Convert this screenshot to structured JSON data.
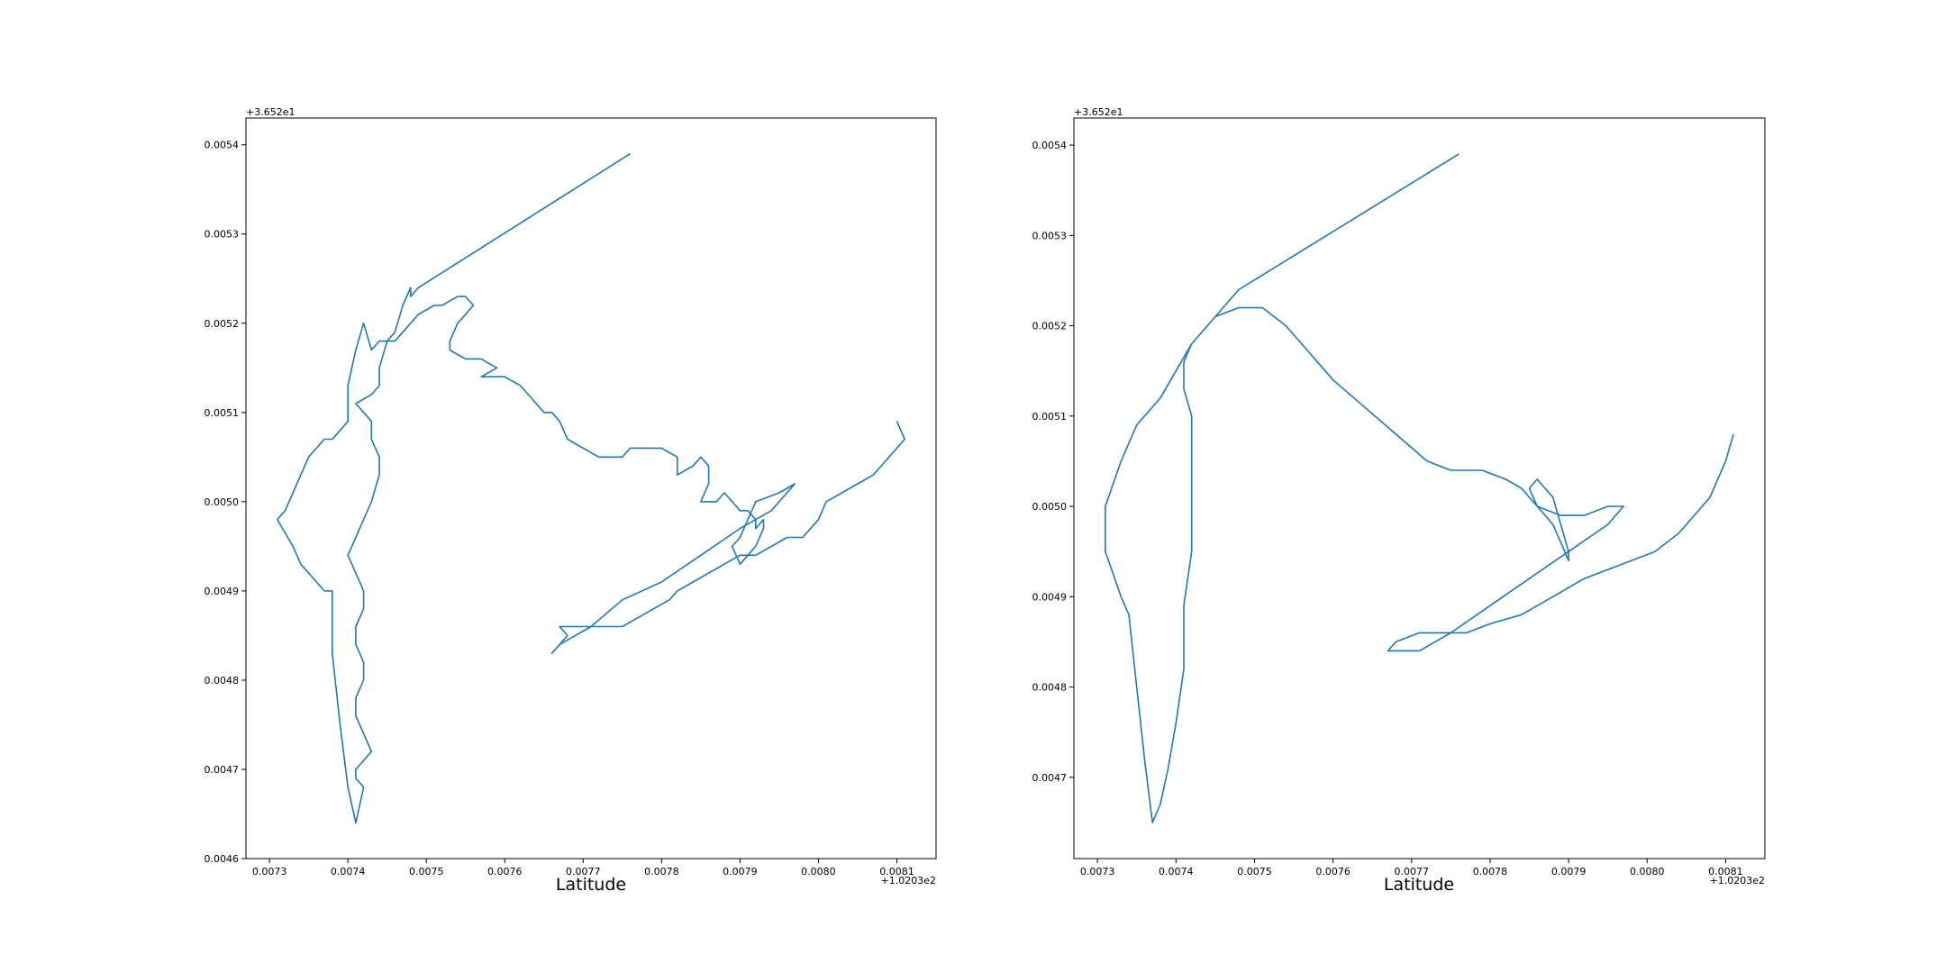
{
  "figure": {
    "background": "#ffffff",
    "line_color": "#1f77b4"
  },
  "chart_data": [
    {
      "type": "line",
      "title": "",
      "xlabel": "Latitude",
      "ylabel": "",
      "x_offset_label": "+1.0203e2",
      "y_offset_label": "+3.652e1",
      "xlim": [
        0.00727,
        0.00815
      ],
      "ylim": [
        0.0046,
        0.00543
      ],
      "x_ticks": [
        0.0073,
        0.0074,
        0.0075,
        0.0076,
        0.0077,
        0.0078,
        0.0079,
        0.008,
        0.0081
      ],
      "x_tick_labels": [
        "0.0073",
        "0.0074",
        "0.0075",
        "0.0076",
        "0.0077",
        "0.0078",
        "0.0079",
        "0.0080",
        "0.0081"
      ],
      "y_ticks": [
        0.0046,
        0.0047,
        0.0048,
        0.0049,
        0.005,
        0.0051,
        0.0052,
        0.0053,
        0.0054
      ],
      "y_tick_labels": [
        "0.0046",
        "0.0047",
        "0.0048",
        "0.0049",
        "0.0050",
        "0.0051",
        "0.0052",
        "0.0053",
        "0.0054"
      ],
      "grid": false,
      "series": [
        {
          "x": [
            0.00776,
            0.00749,
            0.00748,
            0.00748,
            0.00747,
            0.00746,
            0.00745,
            0.00744,
            0.00743,
            0.00742,
            0.00741,
            0.0074,
            0.0074,
            0.00738,
            0.00737,
            0.00736,
            0.00735,
            0.00734,
            0.00733,
            0.00732,
            0.00731,
            0.00733,
            0.00734,
            0.00735,
            0.00736,
            0.00737,
            0.00738,
            0.00738,
            0.00739,
            0.0074,
            0.00741,
            0.00742,
            0.00741,
            0.00741,
            0.00742,
            0.00743,
            0.00742,
            0.00741,
            0.00741,
            0.00742,
            0.00742,
            0.00741,
            0.00741,
            0.00742,
            0.00742,
            0.00741,
            0.0074,
            0.00741,
            0.00742,
            0.00743,
            0.00744,
            0.00744,
            0.00743,
            0.00743,
            0.00742,
            0.00741,
            0.00743,
            0.00744,
            0.00744,
            0.00745,
            0.00746,
            0.00747,
            0.00748,
            0.00749,
            0.00751,
            0.00752,
            0.00754,
            0.00755,
            0.00756,
            0.00754,
            0.00753,
            0.00753,
            0.00755,
            0.00757,
            0.00759,
            0.00757,
            0.0076,
            0.00762,
            0.00764,
            0.00765,
            0.00766,
            0.00767,
            0.00768,
            0.0077,
            0.00772,
            0.00773,
            0.00775,
            0.00776,
            0.00778,
            0.0078,
            0.00782,
            0.00782,
            0.00784,
            0.00785,
            0.00786,
            0.00786,
            0.00785,
            0.00787,
            0.00788,
            0.00789,
            0.0079,
            0.00791,
            0.00792,
            0.00792,
            0.00793,
            0.00793,
            0.00792,
            0.00791,
            0.0079,
            0.00789,
            0.0079,
            0.00791,
            0.00792,
            0.00795,
            0.00797,
            0.00794,
            0.0079,
            0.00785,
            0.0078,
            0.00775,
            0.00771,
            0.00767,
            0.00766,
            0.00768,
            0.00767,
            0.00769,
            0.00772,
            0.00775,
            0.00777,
            0.00779,
            0.00781,
            0.00782,
            0.00784,
            0.00786,
            0.00788,
            0.0079,
            0.00792,
            0.00794,
            0.00796,
            0.00798,
            0.008,
            0.00801,
            0.00803,
            0.00805,
            0.00807,
            0.00809,
            0.0081,
            0.00811,
            0.0081
          ],
          "y": [
            0.00539,
            0.00524,
            0.00523,
            0.00524,
            0.00522,
            0.00519,
            0.00518,
            0.00518,
            0.00517,
            0.0052,
            0.00517,
            0.00513,
            0.00509,
            0.00507,
            0.00507,
            0.00506,
            0.00505,
            0.00503,
            0.00501,
            0.00499,
            0.00498,
            0.00495,
            0.00493,
            0.00492,
            0.00491,
            0.0049,
            0.0049,
            0.00483,
            0.00475,
            0.00468,
            0.00464,
            0.00468,
            0.00469,
            0.0047,
            0.00471,
            0.00472,
            0.00474,
            0.00476,
            0.00478,
            0.0048,
            0.00482,
            0.00484,
            0.00486,
            0.00488,
            0.0049,
            0.00492,
            0.00494,
            0.00496,
            0.00498,
            0.005,
            0.00503,
            0.00505,
            0.00507,
            0.00509,
            0.0051,
            0.00511,
            0.00512,
            0.00513,
            0.00515,
            0.00518,
            0.00518,
            0.00519,
            0.0052,
            0.00521,
            0.00522,
            0.00522,
            0.00523,
            0.00523,
            0.00522,
            0.0052,
            0.00518,
            0.00517,
            0.00516,
            0.00516,
            0.00515,
            0.00514,
            0.00514,
            0.00513,
            0.00511,
            0.0051,
            0.0051,
            0.00509,
            0.00507,
            0.00506,
            0.00505,
            0.00505,
            0.00505,
            0.00506,
            0.00506,
            0.00506,
            0.00505,
            0.00503,
            0.00504,
            0.00505,
            0.00504,
            0.00502,
            0.005,
            0.005,
            0.00501,
            0.005,
            0.00499,
            0.00499,
            0.00498,
            0.00497,
            0.00498,
            0.00497,
            0.00495,
            0.00494,
            0.00493,
            0.00495,
            0.00496,
            0.00498,
            0.005,
            0.00501,
            0.00502,
            0.00499,
            0.00497,
            0.00494,
            0.00491,
            0.00489,
            0.00486,
            0.00484,
            0.00483,
            0.00485,
            0.00486,
            0.00486,
            0.00486,
            0.00486,
            0.00487,
            0.00488,
            0.00489,
            0.0049,
            0.00491,
            0.00492,
            0.00493,
            0.00494,
            0.00494,
            0.00495,
            0.00496,
            0.00496,
            0.00498,
            0.005,
            0.00501,
            0.00502,
            0.00503,
            0.00505,
            0.00506,
            0.00507,
            0.00509
          ]
        }
      ]
    },
    {
      "type": "line",
      "title": "",
      "xlabel": "Latitude",
      "ylabel": "",
      "x_offset_label": "+1.0203e2",
      "y_offset_label": "+3.652e1",
      "xlim": [
        0.00727,
        0.00815
      ],
      "ylim": [
        0.00461,
        0.00543
      ],
      "x_ticks": [
        0.0073,
        0.0074,
        0.0075,
        0.0076,
        0.0077,
        0.0078,
        0.0079,
        0.008,
        0.0081
      ],
      "x_tick_labels": [
        "0.0073",
        "0.0074",
        "0.0075",
        "0.0076",
        "0.0077",
        "0.0078",
        "0.0079",
        "0.0080",
        "0.0081"
      ],
      "y_ticks": [
        0.0047,
        0.0048,
        0.0049,
        0.005,
        0.0051,
        0.0052,
        0.0053,
        0.0054
      ],
      "y_tick_labels": [
        "0.0047",
        "0.0048",
        "0.0049",
        "0.0050",
        "0.0051",
        "0.0052",
        "0.0053",
        "0.0054"
      ],
      "grid": false,
      "series": [
        {
          "x": [
            0.00776,
            0.00748,
            0.00746,
            0.00744,
            0.00742,
            0.0074,
            0.00738,
            0.00735,
            0.00733,
            0.00731,
            0.00731,
            0.00733,
            0.00734,
            0.00735,
            0.00736,
            0.00737,
            0.00738,
            0.00739,
            0.0074,
            0.00741,
            0.00741,
            0.00742,
            0.00742,
            0.00742,
            0.00742,
            0.00741,
            0.00741,
            0.00742,
            0.00743,
            0.00745,
            0.00748,
            0.00751,
            0.00754,
            0.00757,
            0.0076,
            0.00764,
            0.00768,
            0.00772,
            0.00775,
            0.00779,
            0.00782,
            0.00784,
            0.00786,
            0.00788,
            0.00789,
            0.0079,
            0.0079,
            0.00789,
            0.00788,
            0.00786,
            0.00785,
            0.00786,
            0.00789,
            0.00792,
            0.00795,
            0.00797,
            0.00795,
            0.0079,
            0.00785,
            0.0078,
            0.00775,
            0.00771,
            0.00768,
            0.00767,
            0.00768,
            0.00771,
            0.00774,
            0.00777,
            0.0078,
            0.00784,
            0.00788,
            0.00792,
            0.00795,
            0.00798,
            0.00801,
            0.00804,
            0.00806,
            0.00808,
            0.0081,
            0.00811
          ],
          "y": [
            0.00539,
            0.00524,
            0.00522,
            0.0052,
            0.00518,
            0.00515,
            0.00512,
            0.00509,
            0.00505,
            0.005,
            0.00495,
            0.0049,
            0.00488,
            0.0048,
            0.00472,
            0.00465,
            0.00467,
            0.00471,
            0.00476,
            0.00482,
            0.00489,
            0.00495,
            0.005,
            0.00506,
            0.0051,
            0.00513,
            0.00516,
            0.00518,
            0.00519,
            0.00521,
            0.00522,
            0.00522,
            0.0052,
            0.00517,
            0.00514,
            0.00511,
            0.00508,
            0.00505,
            0.00504,
            0.00504,
            0.00503,
            0.00502,
            0.005,
            0.00498,
            0.00496,
            0.00494,
            0.00495,
            0.00498,
            0.00501,
            0.00503,
            0.00502,
            0.005,
            0.00499,
            0.00499,
            0.005,
            0.005,
            0.00498,
            0.00495,
            0.00492,
            0.00489,
            0.00486,
            0.00484,
            0.00484,
            0.00484,
            0.00485,
            0.00486,
            0.00486,
            0.00486,
            0.00487,
            0.00488,
            0.0049,
            0.00492,
            0.00493,
            0.00494,
            0.00495,
            0.00497,
            0.00499,
            0.00501,
            0.00505,
            0.00508
          ]
        }
      ]
    }
  ]
}
